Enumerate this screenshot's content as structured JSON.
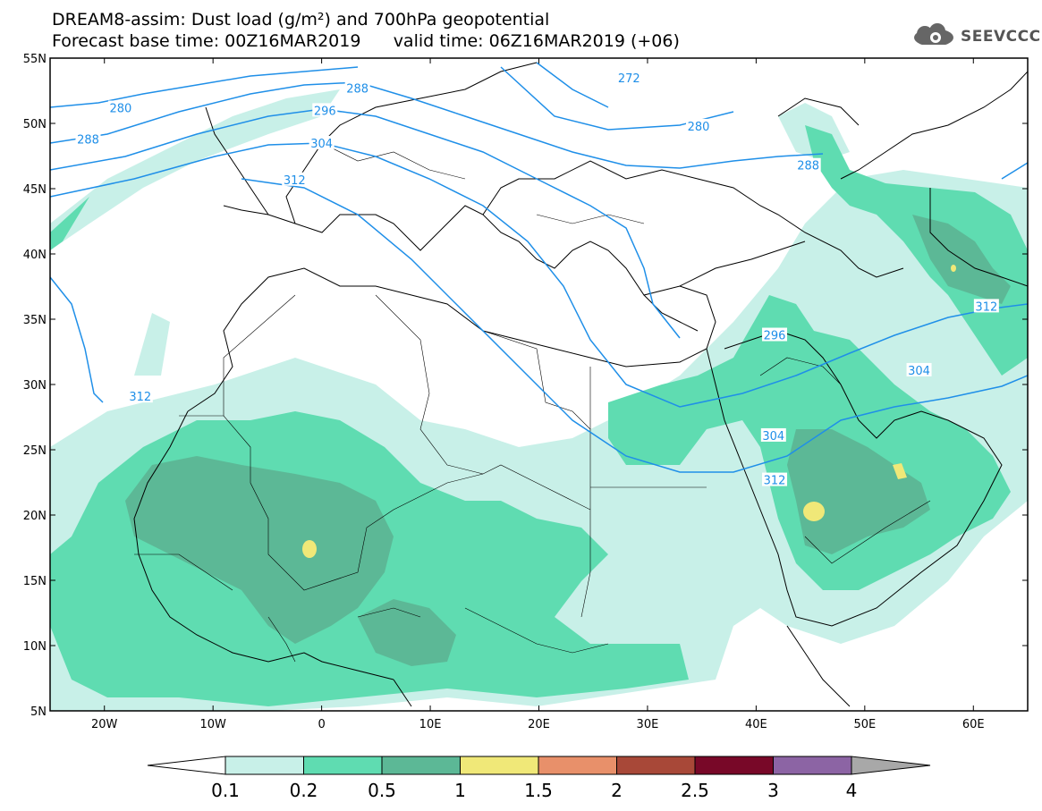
{
  "title": {
    "line1": "DREAM8-assim: Dust load (g/m²) and 700hPa geopotential",
    "line2": "Forecast base time: 00Z16MAR2019      valid time: 06Z16MAR2019 (+06)"
  },
  "logo": {
    "text": "SEEVCCC",
    "icon": "cloud-gear-icon"
  },
  "map": {
    "lat_labels": [
      "55N",
      "50N",
      "45N",
      "40N",
      "35N",
      "30N",
      "25N",
      "20N",
      "15N",
      "10N",
      "5N"
    ],
    "lon_labels": [
      "20W",
      "10W",
      "0",
      "10E",
      "20E",
      "30E",
      "40E",
      "50E",
      "60E"
    ],
    "contour_labels": [
      {
        "text": "280",
        "lon": -18.5,
        "lat": 51.2
      },
      {
        "text": "288",
        "lon": -21.5,
        "lat": 48.8
      },
      {
        "text": "288",
        "lon": 3.3,
        "lat": 52.7
      },
      {
        "text": "296",
        "lon": 0.3,
        "lat": 51.0
      },
      {
        "text": "304",
        "lon": 0.0,
        "lat": 48.5
      },
      {
        "text": "312",
        "lon": -2.5,
        "lat": 45.7
      },
      {
        "text": "272",
        "lon": 28.3,
        "lat": 53.5
      },
      {
        "text": "280",
        "lon": 34.7,
        "lat": 49.8
      },
      {
        "text": "288",
        "lon": 44.8,
        "lat": 46.8
      },
      {
        "text": "296",
        "lon": 41.7,
        "lat": 33.8
      },
      {
        "text": "304",
        "lon": 41.6,
        "lat": 26.1
      },
      {
        "text": "312",
        "lon": -16.7,
        "lat": 29.1
      },
      {
        "text": "312",
        "lon": 41.7,
        "lat": 22.7
      },
      {
        "text": "304",
        "lon": 55.0,
        "lat": 31.1
      },
      {
        "text": "312",
        "lon": 61.2,
        "lat": 36.0
      }
    ],
    "contour_color": "#1f8fe8"
  },
  "colorbar": {
    "labels": [
      "0.1",
      "0.2",
      "0.5",
      "1",
      "1.5",
      "2",
      "2.5",
      "3",
      "4"
    ],
    "colors": [
      "#c8f0e8",
      "#5fdcb1",
      "#5cb896",
      "#f0e878",
      "#e8906a",
      "#a84838",
      "#780828",
      "#8c64a4"
    ],
    "arrow_left_color": "#ffffff",
    "arrow_right_color": "#a8a8a8"
  }
}
